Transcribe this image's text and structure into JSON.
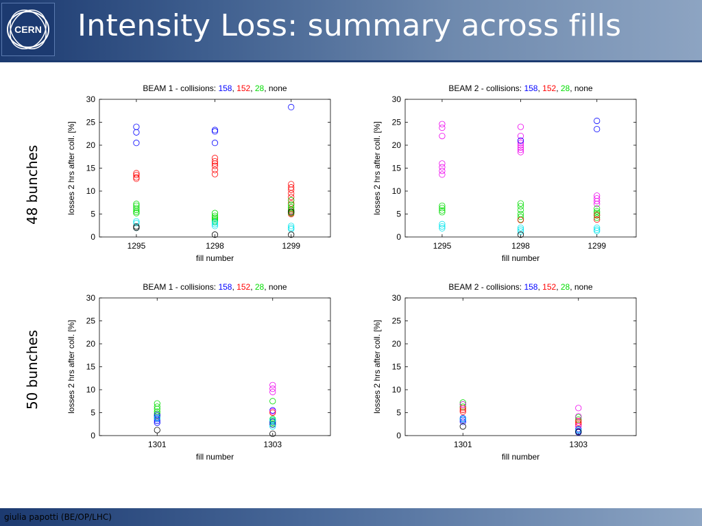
{
  "page": {
    "title": "Intensity Loss: summary across fills",
    "footer": "giulia papotti (BE/OP/LHC)",
    "logo_text": "CERN",
    "row_labels": [
      "48 bunches",
      "50 bunches"
    ]
  },
  "colors": {
    "header_dark": "#1c3a70",
    "c158": "#0000ff",
    "c152": "#ff0000",
    "c28": "#00dd00",
    "none": "#000000",
    "cyan": "#00e5ee",
    "magenta": "#ee00ee"
  },
  "chart_data": [
    {
      "type": "scatter",
      "title": {
        "prefix": "BEAM 1 - collisions: ",
        "parts": [
          {
            "text": "158",
            "color": "#0000ff"
          },
          {
            "text": ", ",
            "color": "#000000"
          },
          {
            "text": "152",
            "color": "#ff0000"
          },
          {
            "text": ", ",
            "color": "#000000"
          },
          {
            "text": "28",
            "color": "#00dd00"
          },
          {
            "text": ", none",
            "color": "#000000"
          }
        ]
      },
      "xlabel": "fill number",
      "ylabel": "losses 2 hrs after coll. [%]",
      "categories": [
        "1295",
        "1298",
        "1299"
      ],
      "ylim": [
        0,
        30
      ],
      "yticks": [
        0,
        5,
        10,
        15,
        20,
        25,
        30
      ],
      "series": [
        {
          "color": "#0000ff",
          "points": [
            [
              0,
              24
            ],
            [
              0,
              22.8
            ],
            [
              0,
              20.5
            ],
            [
              1,
              23.3
            ],
            [
              1,
              23
            ],
            [
              1,
              20.5
            ],
            [
              2,
              28.3
            ]
          ]
        },
        {
          "color": "#ff0000",
          "points": [
            [
              0,
              13.9
            ],
            [
              0,
              13.5
            ],
            [
              0,
              13
            ],
            [
              0,
              12.7
            ],
            [
              1,
              17.2
            ],
            [
              1,
              16.5
            ],
            [
              1,
              16
            ],
            [
              1,
              15.5
            ],
            [
              1,
              14.6
            ],
            [
              1,
              13.7
            ],
            [
              2,
              11.5
            ],
            [
              2,
              10.8
            ],
            [
              2,
              10.3
            ],
            [
              2,
              9.5
            ],
            [
              2,
              8.7
            ],
            [
              2,
              8
            ],
            [
              2,
              7.3
            ],
            [
              2,
              6.5
            ],
            [
              2,
              5.8
            ],
            [
              2,
              5.3
            ],
            [
              2,
              5
            ]
          ]
        },
        {
          "color": "#00dd00",
          "points": [
            [
              0,
              7.2
            ],
            [
              0,
              6.8
            ],
            [
              0,
              6.3
            ],
            [
              0,
              5.9
            ],
            [
              0,
              5.5
            ],
            [
              0,
              5.2
            ],
            [
              1,
              5.2
            ],
            [
              1,
              4.6
            ],
            [
              1,
              4.2
            ],
            [
              1,
              3.9
            ],
            [
              1,
              3.6
            ],
            [
              1,
              3.3
            ],
            [
              2,
              8
            ],
            [
              2,
              7
            ],
            [
              2,
              6.5
            ],
            [
              2,
              6
            ],
            [
              2,
              5.5
            ],
            [
              2,
              5.2
            ]
          ]
        },
        {
          "color": "#00e5ee",
          "points": [
            [
              0,
              3.4
            ],
            [
              0,
              3
            ],
            [
              0,
              2
            ],
            [
              1,
              3.2
            ],
            [
              1,
              2.8
            ],
            [
              1,
              2.4
            ],
            [
              2,
              2.4
            ],
            [
              2,
              2
            ],
            [
              2,
              1.7
            ]
          ]
        },
        {
          "color": "#000000",
          "points": [
            [
              0,
              2.3
            ],
            [
              0,
              2
            ],
            [
              1,
              0.5
            ],
            [
              2,
              0.5
            ],
            [
              2,
              5.5
            ]
          ]
        }
      ]
    },
    {
      "type": "scatter",
      "title": {
        "prefix": "BEAM 2 - collisions: ",
        "parts": [
          {
            "text": "158",
            "color": "#0000ff"
          },
          {
            "text": ", ",
            "color": "#000000"
          },
          {
            "text": "152",
            "color": "#ff0000"
          },
          {
            "text": ", ",
            "color": "#000000"
          },
          {
            "text": "28",
            "color": "#00dd00"
          },
          {
            "text": ", none",
            "color": "#000000"
          }
        ]
      },
      "xlabel": "fill number",
      "ylabel": "losses 2 hrs after coll. [%]",
      "categories": [
        "1295",
        "1298",
        "1299"
      ],
      "ylim": [
        0,
        30
      ],
      "yticks": [
        0,
        5,
        10,
        15,
        20,
        25,
        30
      ],
      "series": [
        {
          "color": "#ee00ee",
          "points": [
            [
              0,
              24.6
            ],
            [
              0,
              23.8
            ],
            [
              0,
              22
            ],
            [
              0,
              16
            ],
            [
              0,
              15.2
            ],
            [
              0,
              14.4
            ],
            [
              0,
              13.6
            ],
            [
              1,
              24
            ],
            [
              1,
              22
            ],
            [
              1,
              21
            ],
            [
              1,
              20.5
            ],
            [
              1,
              20
            ],
            [
              1,
              19.5
            ],
            [
              1,
              19
            ],
            [
              1,
              18.5
            ],
            [
              2,
              9
            ],
            [
              2,
              8.4
            ],
            [
              2,
              7.8
            ],
            [
              2,
              7.2
            ]
          ]
        },
        {
          "color": "#0000ff",
          "points": [
            [
              2,
              25.3
            ],
            [
              2,
              23.5
            ],
            [
              1,
              21
            ]
          ]
        },
        {
          "color": "#00dd00",
          "points": [
            [
              0,
              6.8
            ],
            [
              0,
              6.3
            ],
            [
              0,
              5.8
            ],
            [
              0,
              5.4
            ],
            [
              1,
              7.3
            ],
            [
              1,
              6.7
            ],
            [
              1,
              5.9
            ],
            [
              1,
              5
            ],
            [
              1,
              4.4
            ],
            [
              1,
              3.8
            ],
            [
              2,
              6.2
            ],
            [
              2,
              5.6
            ],
            [
              2,
              5.2
            ],
            [
              2,
              4.7
            ],
            [
              2,
              4.2
            ]
          ]
        },
        {
          "color": "#ff0000",
          "points": [
            [
              1,
              3.7
            ],
            [
              2,
              3.8
            ],
            [
              2,
              4.8
            ]
          ]
        },
        {
          "color": "#00e5ee",
          "points": [
            [
              0,
              2.8
            ],
            [
              0,
              2.3
            ],
            [
              0,
              1.9
            ],
            [
              1,
              2
            ],
            [
              1,
              1.6
            ],
            [
              1,
              1.2
            ],
            [
              2,
              2
            ],
            [
              2,
              1.6
            ],
            [
              2,
              1.3
            ]
          ]
        },
        {
          "color": "#000000",
          "points": [
            [
              1,
              0.5
            ]
          ]
        }
      ]
    },
    {
      "type": "scatter",
      "title": {
        "prefix": "BEAM 1 - collisions: ",
        "parts": [
          {
            "text": "158",
            "color": "#0000ff"
          },
          {
            "text": ", ",
            "color": "#000000"
          },
          {
            "text": "152",
            "color": "#ff0000"
          },
          {
            "text": ", ",
            "color": "#000000"
          },
          {
            "text": "28",
            "color": "#00dd00"
          },
          {
            "text": ", none",
            "color": "#000000"
          }
        ]
      },
      "xlabel": "fill number",
      "ylabel": "losses 2 hrs after coll. [%]",
      "categories": [
        "1301",
        "1303"
      ],
      "ylim": [
        0,
        30
      ],
      "yticks": [
        0,
        5,
        10,
        15,
        20,
        25,
        30
      ],
      "series": [
        {
          "color": "#00dd00",
          "points": [
            [
              0,
              7
            ],
            [
              0,
              6.3
            ],
            [
              0,
              5.8
            ],
            [
              0,
              5.2
            ],
            [
              0,
              4.8
            ],
            [
              0,
              4.3
            ],
            [
              1,
              7.5
            ],
            [
              1,
              3.6
            ],
            [
              1,
              3.2
            ],
            [
              1,
              2.8
            ],
            [
              1,
              2.5
            ]
          ]
        },
        {
          "color": "#0000ff",
          "points": [
            [
              0,
              4.5
            ],
            [
              0,
              4
            ],
            [
              0,
              3.6
            ],
            [
              0,
              3.2
            ],
            [
              0,
              2.8
            ],
            [
              1,
              5.5
            ],
            [
              1,
              3
            ],
            [
              1,
              2.4
            ]
          ]
        },
        {
          "color": "#00e5ee",
          "points": [
            [
              0,
              3.8
            ],
            [
              1,
              3.4
            ],
            [
              1,
              2
            ]
          ]
        },
        {
          "color": "#ee00ee",
          "points": [
            [
              1,
              11
            ],
            [
              1,
              10.2
            ],
            [
              1,
              9.5
            ],
            [
              1,
              5.3
            ]
          ]
        },
        {
          "color": "#ff0000",
          "points": [
            [
              1,
              5
            ]
          ]
        },
        {
          "color": "#000000",
          "points": [
            [
              0,
              1.2
            ],
            [
              1,
              0.4
            ]
          ]
        }
      ]
    },
    {
      "type": "scatter",
      "title": {
        "prefix": "BEAM 2 - collisions: ",
        "parts": [
          {
            "text": "158",
            "color": "#0000ff"
          },
          {
            "text": ", ",
            "color": "#000000"
          },
          {
            "text": "152",
            "color": "#ff0000"
          },
          {
            "text": ", ",
            "color": "#000000"
          },
          {
            "text": "28",
            "color": "#00dd00"
          },
          {
            "text": ", none",
            "color": "#000000"
          }
        ]
      },
      "xlabel": "fill number",
      "ylabel": "losses 2 hrs after coll. [%]",
      "categories": [
        "1301",
        "1303"
      ],
      "ylim": [
        0,
        30
      ],
      "yticks": [
        0,
        5,
        10,
        15,
        20,
        25,
        30
      ],
      "series": [
        {
          "color": "#00dd00",
          "points": [
            [
              0,
              7.2
            ],
            [
              0,
              6.8
            ],
            [
              0,
              6.3
            ],
            [
              1,
              4
            ],
            [
              1,
              3.5
            ]
          ]
        },
        {
          "color": "#ff0000",
          "points": [
            [
              0,
              6
            ],
            [
              0,
              5.6
            ],
            [
              0,
              5.2
            ],
            [
              1,
              3.2
            ],
            [
              1,
              2.8
            ],
            [
              1,
              2.4
            ]
          ]
        },
        {
          "color": "#0000ff",
          "points": [
            [
              0,
              3.8
            ],
            [
              0,
              3.4
            ],
            [
              0,
              3
            ],
            [
              1,
              1.4
            ],
            [
              1,
              1
            ],
            [
              1,
              0.7
            ]
          ]
        },
        {
          "color": "#ee00ee",
          "points": [
            [
              0,
              6.8
            ],
            [
              1,
              6
            ],
            [
              1,
              4.2
            ],
            [
              1,
              2
            ]
          ]
        },
        {
          "color": "#00e5ee",
          "points": [
            [
              0,
              3.6
            ],
            [
              1,
              1.2
            ]
          ]
        },
        {
          "color": "#000000",
          "points": [
            [
              0,
              2
            ],
            [
              1,
              0.8
            ]
          ]
        }
      ]
    }
  ]
}
